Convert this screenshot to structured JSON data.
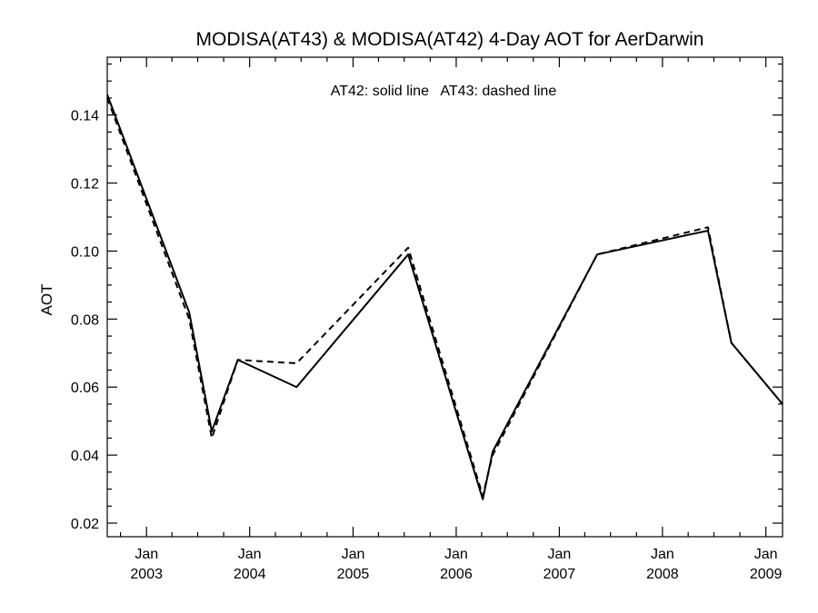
{
  "chart_data": {
    "type": "line",
    "title": "MODISA(AT43) & MODISA(AT42) 4-Day AOT for AerDarwin",
    "annotation": "AT42: solid line   AT43: dashed line",
    "xlabel": "",
    "ylabel": "AOT",
    "xlim": [
      "2002-08-15",
      "2009-03-01"
    ],
    "ylim": [
      0.016,
      0.157
    ],
    "x_ticks": [
      {
        "date": "2003-01-01",
        "month": "Jan",
        "year": "2003"
      },
      {
        "date": "2004-01-01",
        "month": "Jan",
        "year": "2004"
      },
      {
        "date": "2005-01-01",
        "month": "Jan",
        "year": "2005"
      },
      {
        "date": "2006-01-01",
        "month": "Jan",
        "year": "2006"
      },
      {
        "date": "2007-01-01",
        "month": "Jan",
        "year": "2007"
      },
      {
        "date": "2008-01-01",
        "month": "Jan",
        "year": "2008"
      },
      {
        "date": "2009-01-01",
        "month": "Jan",
        "year": "2009"
      }
    ],
    "y_ticks": [
      "0.02",
      "0.04",
      "0.06",
      "0.08",
      "0.10",
      "0.12",
      "0.14"
    ],
    "series": [
      {
        "name": "AT42",
        "style": "solid",
        "color": "#000000",
        "points": [
          {
            "x": "2002-08-15",
            "y": 0.146
          },
          {
            "x": "2003-06-01",
            "y": 0.082
          },
          {
            "x": "2003-08-20",
            "y": 0.047
          },
          {
            "x": "2003-11-20",
            "y": 0.068
          },
          {
            "x": "2004-06-15",
            "y": 0.06
          },
          {
            "x": "2005-07-15",
            "y": 0.099
          },
          {
            "x": "2006-04-05",
            "y": 0.027
          },
          {
            "x": "2006-05-10",
            "y": 0.041
          },
          {
            "x": "2007-05-15",
            "y": 0.099
          },
          {
            "x": "2008-06-10",
            "y": 0.106
          },
          {
            "x": "2008-09-01",
            "y": 0.073
          },
          {
            "x": "2009-03-01",
            "y": 0.055
          }
        ]
      },
      {
        "name": "AT43",
        "style": "dashed",
        "color": "#000000",
        "points": [
          {
            "x": "2002-08-15",
            "y": 0.145
          },
          {
            "x": "2003-06-01",
            "y": 0.08
          },
          {
            "x": "2003-08-20",
            "y": 0.045
          },
          {
            "x": "2003-11-20",
            "y": 0.068
          },
          {
            "x": "2004-06-15",
            "y": 0.067
          },
          {
            "x": "2005-07-15",
            "y": 0.101
          },
          {
            "x": "2006-04-05",
            "y": 0.028
          },
          {
            "x": "2006-05-10",
            "y": 0.04
          },
          {
            "x": "2007-05-15",
            "y": 0.099
          },
          {
            "x": "2008-06-10",
            "y": 0.107
          },
          {
            "x": "2008-09-01",
            "y": 0.073
          },
          {
            "x": "2009-03-01",
            "y": 0.055
          }
        ]
      }
    ]
  }
}
